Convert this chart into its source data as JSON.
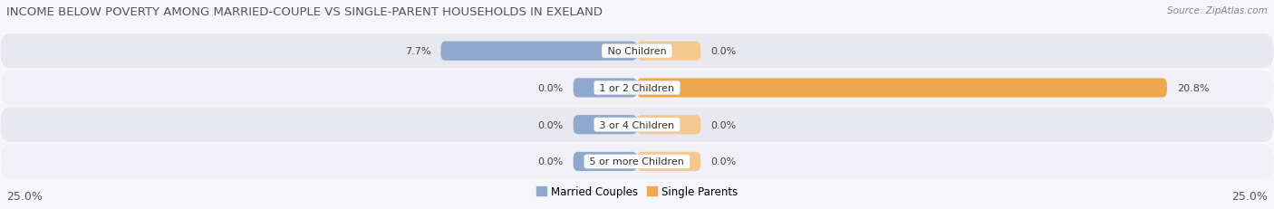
{
  "title": "INCOME BELOW POVERTY AMONG MARRIED-COUPLE VS SINGLE-PARENT HOUSEHOLDS IN EXELAND",
  "source": "Source: ZipAtlas.com",
  "categories": [
    "No Children",
    "1 or 2 Children",
    "3 or 4 Children",
    "5 or more Children"
  ],
  "married_values": [
    7.7,
    0.0,
    0.0,
    0.0
  ],
  "single_values": [
    0.0,
    20.8,
    0.0,
    0.0
  ],
  "married_color": "#8fa8cc",
  "single_color": "#f0a84e",
  "single_color_light": "#f5c890",
  "row_bg_even": "#e8e8f0",
  "row_bg_odd": "#f0f0f6",
  "xlim": 25.0,
  "title_fontsize": 9.5,
  "source_fontsize": 7.5,
  "label_fontsize": 8.0,
  "legend_fontsize": 8.5,
  "tick_fontsize": 9.0,
  "bar_height": 0.52,
  "stub_size": 2.5,
  "background_color": "#f5f5fa"
}
